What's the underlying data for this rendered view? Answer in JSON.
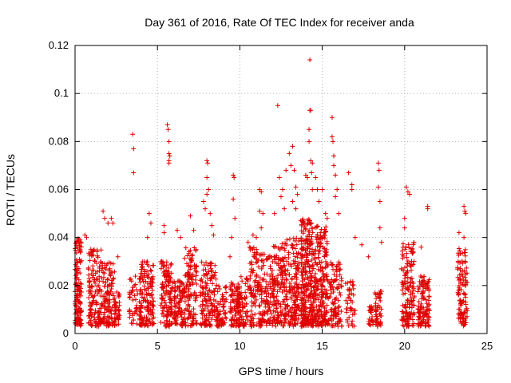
{
  "chart_data": {
    "type": "scatter",
    "title": "Day 361 of 2016, Rate Of TEC Index for receiver anda",
    "xlabel": "GPS time / hours",
    "ylabel": "ROTI / TECUs",
    "xlim": [
      0,
      25
    ],
    "ylim": [
      0,
      0.12
    ],
    "xticks": [
      0,
      5,
      10,
      15,
      20,
      25
    ],
    "yticks": [
      0,
      0.02,
      0.04,
      0.06,
      0.08,
      0.1,
      0.12
    ],
    "xtick_labels": [
      "0",
      "5",
      "10",
      "15",
      "20",
      "25"
    ],
    "ytick_labels": [
      "0",
      "0.02",
      "0.04",
      "0.06",
      "0.08",
      "0.1",
      "0.12"
    ],
    "grid": true,
    "marker": "+",
    "marker_color": "#e00000",
    "clusters": [
      {
        "x": [
          0.0,
          0.4
        ],
        "ymax": 0.04,
        "n": 130
      },
      {
        "x": [
          0.8,
          1.6
        ],
        "ymax": 0.036,
        "n": 140
      },
      {
        "x": [
          1.6,
          2.4
        ],
        "ymax": 0.03,
        "n": 120
      },
      {
        "x": [
          2.4,
          2.7
        ],
        "ymax": 0.018,
        "n": 40
      },
      {
        "x": [
          3.3,
          3.8
        ],
        "ymax": 0.024,
        "n": 40
      },
      {
        "x": [
          3.9,
          4.8
        ],
        "ymax": 0.03,
        "n": 150
      },
      {
        "x": [
          5.2,
          5.9
        ],
        "ymax": 0.03,
        "n": 130
      },
      {
        "x": [
          6.0,
          6.6
        ],
        "ymax": 0.022,
        "n": 90
      },
      {
        "x": [
          6.6,
          7.4
        ],
        "ymax": 0.036,
        "n": 130
      },
      {
        "x": [
          7.6,
          8.6
        ],
        "ymax": 0.03,
        "n": 140
      },
      {
        "x": [
          8.6,
          9.2
        ],
        "ymax": 0.02,
        "n": 60
      },
      {
        "x": [
          9.4,
          9.9
        ],
        "ymax": 0.022,
        "n": 80
      },
      {
        "x": [
          9.9,
          10.5
        ],
        "ymax": 0.024,
        "n": 80
      },
      {
        "x": [
          10.6,
          11.4
        ],
        "ymax": 0.036,
        "n": 130
      },
      {
        "x": [
          11.4,
          12.0
        ],
        "ymax": 0.034,
        "n": 80
      },
      {
        "x": [
          12.0,
          12.8
        ],
        "ymax": 0.038,
        "n": 150
      },
      {
        "x": [
          12.8,
          13.6
        ],
        "ymax": 0.04,
        "n": 150
      },
      {
        "x": [
          13.7,
          14.4
        ],
        "ymax": 0.048,
        "n": 260
      },
      {
        "x": [
          14.4,
          15.3
        ],
        "ymax": 0.045,
        "n": 240
      },
      {
        "x": [
          15.3,
          16.2
        ],
        "ymax": 0.03,
        "n": 110
      },
      {
        "x": [
          16.4,
          17.0
        ],
        "ymax": 0.022,
        "n": 40
      },
      {
        "x": [
          17.8,
          18.1
        ],
        "ymax": 0.012,
        "n": 25
      },
      {
        "x": [
          18.2,
          18.6
        ],
        "ymax": 0.018,
        "n": 50
      },
      {
        "x": [
          19.8,
          20.6
        ],
        "ymax": 0.038,
        "n": 150
      },
      {
        "x": [
          20.8,
          21.5
        ],
        "ymax": 0.024,
        "n": 120
      },
      {
        "x": [
          23.2,
          23.8
        ],
        "ymax": 0.036,
        "n": 110
      }
    ],
    "outliers": [
      [
        0.3,
        0.039
      ],
      [
        0.6,
        0.041
      ],
      [
        0.7,
        0.04
      ],
      [
        1.7,
        0.051
      ],
      [
        1.8,
        0.048
      ],
      [
        2.0,
        0.046
      ],
      [
        2.2,
        0.048
      ],
      [
        2.3,
        0.046
      ],
      [
        2.6,
        0.032
      ],
      [
        3.5,
        0.083
      ],
      [
        3.55,
        0.077
      ],
      [
        3.55,
        0.067
      ],
      [
        4.5,
        0.05
      ],
      [
        4.6,
        0.046
      ],
      [
        4.4,
        0.04
      ],
      [
        5.6,
        0.087
      ],
      [
        5.65,
        0.085
      ],
      [
        5.7,
        0.08
      ],
      [
        5.7,
        0.075
      ],
      [
        5.75,
        0.074
      ],
      [
        5.7,
        0.072
      ],
      [
        5.7,
        0.071
      ],
      [
        5.4,
        0.045
      ],
      [
        5.4,
        0.042
      ],
      [
        6.2,
        0.043
      ],
      [
        6.4,
        0.04
      ],
      [
        7.0,
        0.049
      ],
      [
        7.2,
        0.043
      ],
      [
        7.8,
        0.055
      ],
      [
        7.9,
        0.052
      ],
      [
        8.0,
        0.072
      ],
      [
        8.05,
        0.071
      ],
      [
        8.0,
        0.065
      ],
      [
        8.1,
        0.06
      ],
      [
        8.0,
        0.058
      ],
      [
        8.2,
        0.05
      ],
      [
        8.3,
        0.045
      ],
      [
        8.4,
        0.041
      ],
      [
        9.4,
        0.032
      ],
      [
        9.6,
        0.066
      ],
      [
        9.65,
        0.065
      ],
      [
        9.6,
        0.056
      ],
      [
        9.7,
        0.048
      ],
      [
        9.5,
        0.04
      ],
      [
        10.5,
        0.038
      ],
      [
        10.6,
        0.036
      ],
      [
        10.8,
        0.041
      ],
      [
        11.0,
        0.04
      ],
      [
        11.2,
        0.06
      ],
      [
        11.3,
        0.059
      ],
      [
        11.2,
        0.051
      ],
      [
        11.4,
        0.05
      ],
      [
        11.3,
        0.044
      ],
      [
        12.1,
        0.05
      ],
      [
        12.3,
        0.095
      ],
      [
        12.4,
        0.065
      ],
      [
        12.6,
        0.06
      ],
      [
        12.8,
        0.068
      ],
      [
        12.5,
        0.057
      ],
      [
        12.7,
        0.052
      ],
      [
        13.0,
        0.075
      ],
      [
        13.2,
        0.078
      ],
      [
        13.1,
        0.07
      ],
      [
        13.3,
        0.068
      ],
      [
        13.4,
        0.061
      ],
      [
        13.5,
        0.058
      ],
      [
        13.2,
        0.055
      ],
      [
        13.4,
        0.052
      ],
      [
        14.0,
        0.066
      ],
      [
        14.1,
        0.065
      ],
      [
        14.2,
        0.08
      ],
      [
        14.2,
        0.085
      ],
      [
        14.25,
        0.093
      ],
      [
        14.25,
        0.114
      ],
      [
        14.3,
        0.093
      ],
      [
        14.3,
        0.072
      ],
      [
        14.4,
        0.071
      ],
      [
        14.35,
        0.067
      ],
      [
        14.4,
        0.06
      ],
      [
        14.6,
        0.065
      ],
      [
        14.7,
        0.06
      ],
      [
        14.8,
        0.055
      ],
      [
        15.0,
        0.06
      ],
      [
        15.2,
        0.05
      ],
      [
        15.3,
        0.048
      ],
      [
        15.6,
        0.09
      ],
      [
        15.6,
        0.082
      ],
      [
        15.65,
        0.08
      ],
      [
        15.7,
        0.074
      ],
      [
        15.7,
        0.07
      ],
      [
        15.8,
        0.066
      ],
      [
        15.9,
        0.06
      ],
      [
        15.8,
        0.057
      ],
      [
        16.0,
        0.05
      ],
      [
        16.6,
        0.067
      ],
      [
        16.8,
        0.062
      ],
      [
        16.8,
        0.06
      ],
      [
        17.0,
        0.04
      ],
      [
        17.4,
        0.037
      ],
      [
        17.8,
        0.032
      ],
      [
        18.4,
        0.071
      ],
      [
        18.45,
        0.068
      ],
      [
        18.4,
        0.061
      ],
      [
        18.5,
        0.055
      ],
      [
        18.5,
        0.044
      ],
      [
        18.6,
        0.038
      ],
      [
        20.1,
        0.061
      ],
      [
        20.2,
        0.059
      ],
      [
        20.3,
        0.058
      ],
      [
        20.0,
        0.048
      ],
      [
        20.0,
        0.044
      ],
      [
        21.4,
        0.053
      ],
      [
        21.4,
        0.052
      ],
      [
        21.0,
        0.036
      ],
      [
        23.3,
        0.042
      ],
      [
        23.6,
        0.053
      ],
      [
        23.65,
        0.051
      ],
      [
        23.7,
        0.05
      ],
      [
        23.6,
        0.04
      ]
    ]
  }
}
